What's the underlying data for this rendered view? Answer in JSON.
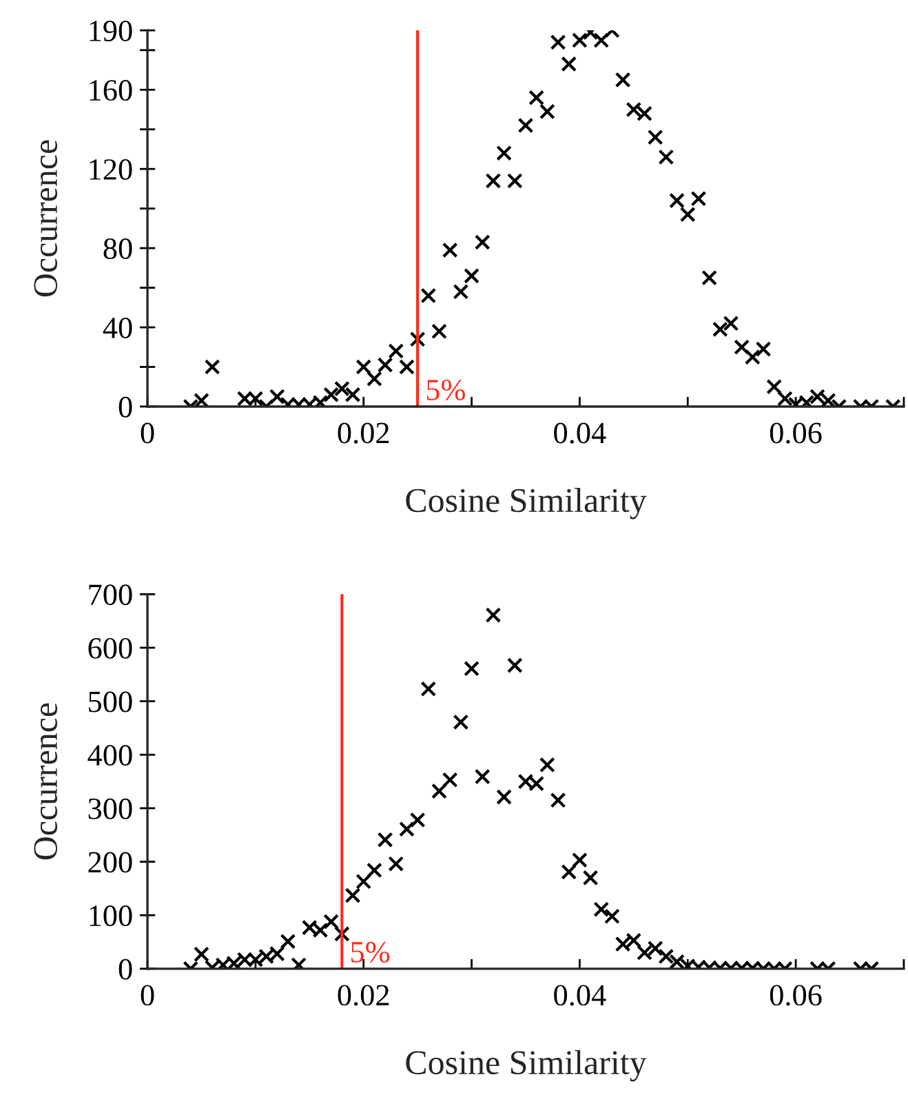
{
  "chart_data": [
    {
      "type": "scatter",
      "xlabel": "Cosine Similarity",
      "ylabel": "Occurrence",
      "marker": "cross",
      "grid": false,
      "xlim": [
        0,
        0.07
      ],
      "ylim": [
        0,
        190
      ],
      "xticks": [
        0,
        {
          "value": 0.01,
          "label": null
        },
        0.02,
        {
          "value": 0.03,
          "label": null
        },
        0.04,
        {
          "value": 0.05,
          "label": null
        },
        0.06,
        {
          "value": 0.07,
          "label": null
        }
      ],
      "yticks": [
        0,
        {
          "value": 20,
          "label": null
        },
        40,
        {
          "value": 60,
          "label": null
        },
        80,
        {
          "value": 100,
          "label": null
        },
        120,
        {
          "value": 140,
          "label": null
        },
        160,
        {
          "value": 180,
          "label": null
        },
        190
      ],
      "ref_lines": [
        {
          "axis": "x",
          "value": 0.025,
          "color": "#ff2a1a"
        }
      ],
      "annotations": [
        {
          "text": "5%",
          "x": 0.025,
          "y": 0
        }
      ],
      "series": [
        {
          "color": "#000000",
          "x": [
            0.004,
            0.005,
            0.006,
            0.009,
            0.01,
            0.011,
            0.012,
            0.013,
            0.014,
            0.015,
            0.016,
            0.017,
            0.018,
            0.019,
            0.02,
            0.021,
            0.022,
            0.023,
            0.024,
            0.025,
            0.026,
            0.027,
            0.028,
            0.029,
            0.03,
            0.031,
            0.032,
            0.033,
            0.034,
            0.035,
            0.036,
            0.037,
            0.038,
            0.039,
            0.04,
            0.041,
            0.042,
            0.043,
            0.044,
            0.045,
            0.046,
            0.047,
            0.048,
            0.049,
            0.05,
            0.051,
            0.052,
            0.053,
            0.054,
            0.055,
            0.056,
            0.057,
            0.058,
            0.059,
            0.06,
            0.061,
            0.062,
            0.063,
            0.064,
            0.066,
            0.067,
            0.069
          ],
          "values": [
            0,
            3,
            20,
            4,
            4,
            0,
            5,
            1,
            1,
            1,
            2,
            6,
            9,
            6,
            20,
            14,
            21,
            28,
            20,
            34,
            56,
            38,
            79,
            58,
            66,
            83,
            114,
            128,
            114,
            142,
            156,
            149,
            184,
            173,
            185,
            189,
            185,
            190,
            165,
            150,
            148,
            136,
            126,
            104,
            97,
            105,
            65,
            39,
            42,
            30,
            25,
            29,
            10,
            4,
            1,
            2,
            5,
            3,
            0,
            0,
            0,
            0
          ]
        }
      ]
    },
    {
      "type": "scatter",
      "xlabel": "Cosine Similarity",
      "ylabel": "Occurrence",
      "marker": "cross",
      "grid": false,
      "xlim": [
        0,
        0.07
      ],
      "ylim": [
        0,
        700
      ],
      "xticks": [
        0,
        {
          "value": 0.01,
          "label": null
        },
        0.02,
        {
          "value": 0.03,
          "label": null
        },
        0.04,
        {
          "value": 0.05,
          "label": null
        },
        0.06,
        {
          "value": 0.07,
          "label": null
        }
      ],
      "yticks": [
        0,
        100,
        200,
        300,
        400,
        500,
        600,
        700
      ],
      "ref_lines": [
        {
          "axis": "x",
          "value": 0.018,
          "color": "#ff2a1a"
        }
      ],
      "annotations": [
        {
          "text": "5%",
          "x": 0.018,
          "y": 0
        }
      ],
      "series": [
        {
          "color": "#000000",
          "x": [
            0.004,
            0.005,
            0.006,
            0.007,
            0.008,
            0.009,
            0.01,
            0.011,
            0.012,
            0.013,
            0.014,
            0.015,
            0.016,
            0.017,
            0.018,
            0.019,
            0.02,
            0.021,
            0.022,
            0.023,
            0.024,
            0.025,
            0.026,
            0.027,
            0.028,
            0.029,
            0.03,
            0.031,
            0.032,
            0.033,
            0.034,
            0.035,
            0.036,
            0.037,
            0.038,
            0.039,
            0.04,
            0.041,
            0.042,
            0.043,
            0.044,
            0.045,
            0.046,
            0.047,
            0.048,
            0.049,
            0.05,
            0.051,
            0.052,
            0.053,
            0.054,
            0.055,
            0.056,
            0.057,
            0.058,
            0.059,
            0.062,
            0.063,
            0.066,
            0.067
          ],
          "values": [
            0,
            27,
            2,
            7,
            10,
            17,
            17,
            23,
            28,
            51,
            7,
            77,
            72,
            88,
            65,
            137,
            163,
            184,
            241,
            196,
            261,
            278,
            523,
            332,
            353,
            461,
            561,
            359,
            661,
            321,
            567,
            350,
            346,
            381,
            315,
            181,
            203,
            170,
            111,
            98,
            46,
            53,
            30,
            38,
            23,
            13,
            5,
            3,
            2,
            1,
            1,
            1,
            1,
            0,
            0,
            0,
            0,
            0,
            0,
            0
          ]
        }
      ]
    }
  ]
}
